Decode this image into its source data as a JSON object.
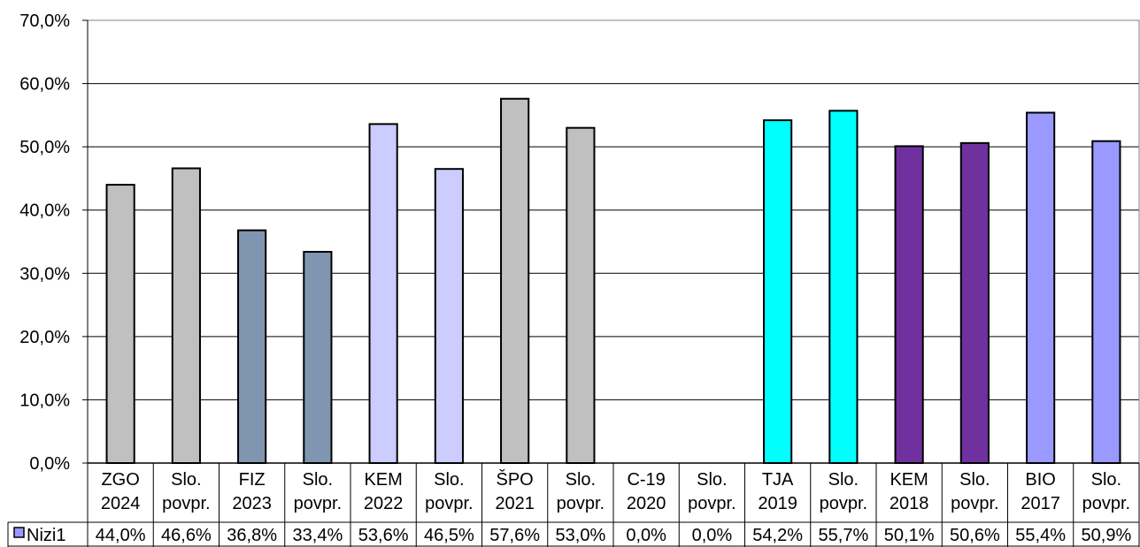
{
  "chart_data": {
    "type": "bar",
    "categories": [
      [
        "ZGO",
        "2024"
      ],
      [
        "Slo.",
        "povpr."
      ],
      [
        "FIZ",
        "2023"
      ],
      [
        "Slo.",
        "povpr."
      ],
      [
        "KEM",
        "2022"
      ],
      [
        "Slo.",
        "povpr."
      ],
      [
        "ŠPO",
        "2021"
      ],
      [
        "Slo.",
        "povpr."
      ],
      [
        "C-19",
        "2020"
      ],
      [
        "Slo.",
        "povpr."
      ],
      [
        "TJA",
        "2019"
      ],
      [
        "Slo.",
        "povpr."
      ],
      [
        "KEM",
        "2018"
      ],
      [
        "Slo.",
        "povpr."
      ],
      [
        "BIO",
        "2017"
      ],
      [
        "Slo.",
        "povpr."
      ]
    ],
    "series": [
      {
        "name": "Nizi1",
        "values": [
          44.0,
          46.6,
          36.8,
          33.4,
          53.6,
          46.5,
          57.6,
          53.0,
          0.0,
          0.0,
          54.2,
          55.7,
          50.1,
          50.6,
          55.4,
          50.9
        ],
        "value_labels": [
          "44,0%",
          "46,6%",
          "36,8%",
          "33,4%",
          "53,6%",
          "46,5%",
          "57,6%",
          "53,0%",
          "0,0%",
          "0,0%",
          "54,2%",
          "55,7%",
          "50,1%",
          "50,6%",
          "55,4%",
          "50,9%"
        ],
        "bar_colors": [
          "#c0c0c0",
          "#c0c0c0",
          "#8096b0",
          "#8096b0",
          "#ccccff",
          "#ccccff",
          "#c0c0c0",
          "#c0c0c0",
          "#c0c0c0",
          "#c0c0c0",
          "#00ffff",
          "#00ffff",
          "#7030a0",
          "#7030a0",
          "#9999ff",
          "#9999ff"
        ]
      }
    ],
    "ylim": [
      0,
      70
    ],
    "yticks": [
      0,
      10,
      20,
      30,
      40,
      50,
      60,
      70
    ],
    "ytick_labels": [
      "0,0%",
      "10,0%",
      "20,0%",
      "30,0%",
      "40,0%",
      "50,0%",
      "60,0%",
      "70,0%"
    ],
    "grid": true,
    "legend_key_color": "#9999ff",
    "data_table": true
  }
}
